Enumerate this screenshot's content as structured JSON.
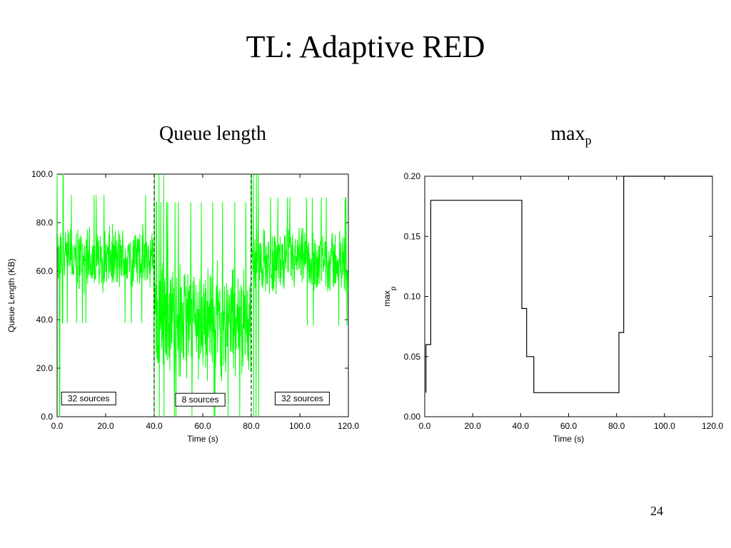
{
  "slide": {
    "title": "TL: Adaptive RED",
    "subtitle_left": "Queue length",
    "subtitle_right_main": "max",
    "subtitle_right_sub": "p",
    "page_number": "24"
  },
  "colors": {
    "queue_series": "#00ff00",
    "axis": "#000000",
    "step_series": "#000000"
  },
  "chart_data": [
    {
      "type": "line",
      "title": "Queue length",
      "xlabel": "Time (s)",
      "ylabel": "Queue Length (KB)",
      "xlim": [
        0,
        120
      ],
      "ylim": [
        0,
        100
      ],
      "xticks": [
        "0.0",
        "20.0",
        "40.0",
        "60.0",
        "80.0",
        "100.0",
        "120.0"
      ],
      "yticks": [
        "0.0",
        "20.0",
        "40.0",
        "60.0",
        "80.0",
        "100.0"
      ],
      "grid": false,
      "vlines": [
        40,
        80
      ],
      "annotations": [
        {
          "text": "32 sources",
          "x": 13,
          "y": 7.5
        },
        {
          "text": "8 sources",
          "x": 59,
          "y": 7
        },
        {
          "text": "32 sources",
          "x": 101,
          "y": 7.5
        }
      ],
      "series": [
        {
          "style": "noisy-oscillation",
          "segments": [
            {
              "x_range": [
                0,
                40
              ],
              "mean": 65,
              "amplitude": 12
            },
            {
              "x_range": [
                40,
                80
              ],
              "mean": 40,
              "amplitude": 22
            },
            {
              "x_range": [
                80,
                120
              ],
              "mean": 64,
              "amplitude": 12
            }
          ],
          "spikes_to_bounds_at": [
            0,
            1,
            2.5,
            40,
            42,
            44,
            80,
            81,
            82,
            83
          ]
        }
      ]
    },
    {
      "type": "line",
      "title": "max_p",
      "xlabel": "Time (s)",
      "ylabel": "max",
      "ylabel_sub": "p",
      "xlim": [
        0,
        120
      ],
      "ylim": [
        0,
        0.2
      ],
      "xticks": [
        "0.0",
        "20.0",
        "40.0",
        "60.0",
        "80.0",
        "100.0",
        "120.0"
      ],
      "yticks": [
        "0.00",
        "0.05",
        "0.10",
        "0.15",
        "0.20"
      ],
      "grid": false,
      "series": [
        {
          "style": "step",
          "x": [
            0.5,
            0.5,
            2.5,
            2.5,
            40.5,
            40.5,
            42.5,
            42.5,
            45.5,
            45.5,
            81,
            81,
            83,
            83,
            120
          ],
          "y": [
            0.02,
            0.06,
            0.06,
            0.18,
            0.18,
            0.09,
            0.09,
            0.05,
            0.05,
            0.02,
            0.02,
            0.07,
            0.07,
            0.2,
            0.2
          ]
        }
      ]
    }
  ]
}
